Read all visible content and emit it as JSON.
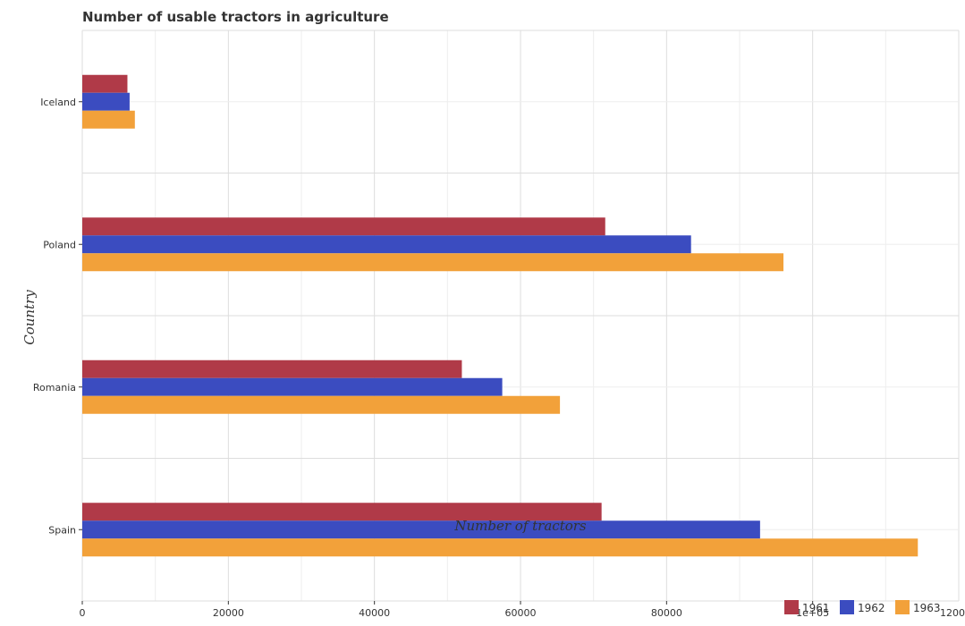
{
  "chart_data": {
    "type": "bar",
    "orientation": "horizontal",
    "title": "Number of usable tractors in agriculture",
    "xlabel": "Number of tractors",
    "ylabel": "Country",
    "categories": [
      "Iceland",
      "Poland",
      "Romania",
      "Spain"
    ],
    "series": [
      {
        "name": "1961",
        "color": "#b03a48",
        "values": [
          6180,
          71600,
          51970,
          71100
        ]
      },
      {
        "name": "1962",
        "color": "#3b4cc0",
        "values": [
          6480,
          83350,
          57500,
          92800
        ]
      },
      {
        "name": "1963",
        "color": "#f2a13a",
        "values": [
          7200,
          96000,
          65400,
          114400
        ]
      }
    ],
    "xlim": [
      0,
      120000
    ],
    "xticks": [
      0,
      20000,
      40000,
      60000,
      80000,
      100000
    ],
    "xtick_labels": [
      "0",
      "20000",
      "40000",
      "60000",
      "80000",
      "1e+05"
    ],
    "edge_tick_label": "1200",
    "grid": true,
    "legend": "bottom-right"
  }
}
